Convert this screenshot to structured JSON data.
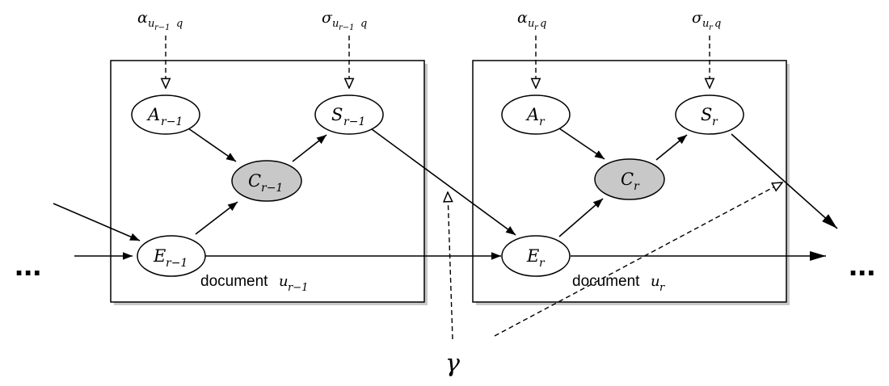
{
  "params": {
    "alpha_prev": {
      "base": "α",
      "sub1": "u",
      "sub2": "r−1",
      "sub3": "q"
    },
    "sigma_prev": {
      "base": "σ",
      "sub1": "u",
      "sub2": "r−1",
      "sub3": "q"
    },
    "alpha_cur": {
      "base": "α",
      "sub1": "u",
      "sub2": "r",
      "sub3": "q"
    },
    "sigma_cur": {
      "base": "σ",
      "sub1": "u",
      "sub2": "r",
      "sub3": "q"
    },
    "gamma": "γ"
  },
  "nodes": {
    "a_prev": {
      "base": "A",
      "sub": "r−1",
      "shaded": false
    },
    "s_prev": {
      "base": "S",
      "sub": "r−1",
      "shaded": false
    },
    "c_prev": {
      "base": "C",
      "sub": "r−1",
      "shaded": true
    },
    "e_prev": {
      "base": "E",
      "sub": "r−1",
      "shaded": false
    },
    "a_cur": {
      "base": "A",
      "sub": "r",
      "shaded": false
    },
    "s_cur": {
      "base": "S",
      "sub": "r",
      "shaded": false
    },
    "c_cur": {
      "base": "C",
      "sub": "r",
      "shaded": true
    },
    "e_cur": {
      "base": "E",
      "sub": "r",
      "shaded": false
    }
  },
  "plates": {
    "prev": {
      "word": "document",
      "base": "u",
      "sub": "r−1"
    },
    "cur": {
      "word": "document",
      "base": "u",
      "sub": "r"
    }
  },
  "ellipsis": "...",
  "colors": {
    "observed_fill": "#c8c8c8",
    "line": "#000000",
    "plate_shadow": "#9a9a9a"
  }
}
